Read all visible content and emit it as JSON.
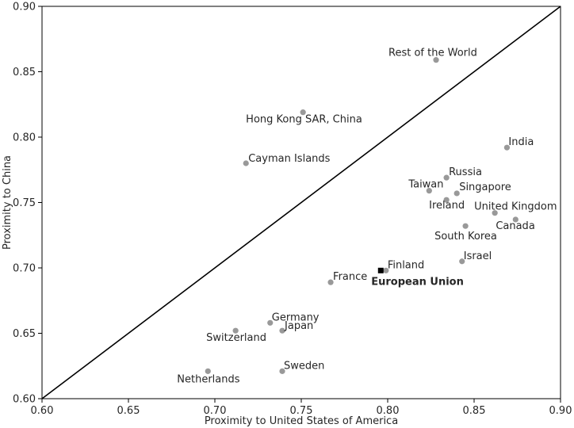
{
  "chart_data": {
    "type": "scatter",
    "xlabel": "Proximity to United States of America",
    "ylabel": "Proximity to China",
    "xlim": [
      0.6,
      0.9
    ],
    "ylim": [
      0.6,
      0.9
    ],
    "xticks": [
      "0.60",
      "0.65",
      "0.70",
      "0.75",
      "0.80",
      "0.85",
      "0.90"
    ],
    "yticks": [
      "0.60",
      "0.65",
      "0.70",
      "0.75",
      "0.80",
      "0.85",
      "0.90"
    ],
    "grid": false,
    "reference_line": {
      "type": "y=x",
      "color": "#000000"
    },
    "colors": {
      "point": "#999999",
      "highlight": "#000000",
      "axis": "#000000"
    },
    "points": [
      {
        "label": "Rest of the World",
        "x": 0.828,
        "y": 0.859
      },
      {
        "label": "Hong Kong SAR, China",
        "x": 0.751,
        "y": 0.819
      },
      {
        "label": "India",
        "x": 0.869,
        "y": 0.792
      },
      {
        "label": "Cayman Islands",
        "x": 0.718,
        "y": 0.78
      },
      {
        "label": "Russia",
        "x": 0.834,
        "y": 0.769
      },
      {
        "label": "Taiwan",
        "x": 0.824,
        "y": 0.759
      },
      {
        "label": "Singapore",
        "x": 0.84,
        "y": 0.757
      },
      {
        "label": "Ireland",
        "x": 0.834,
        "y": 0.752
      },
      {
        "label": "United Kingdom",
        "x": 0.862,
        "y": 0.742
      },
      {
        "label": "Canada",
        "x": 0.874,
        "y": 0.737
      },
      {
        "label": "South Korea",
        "x": 0.845,
        "y": 0.732
      },
      {
        "label": "Israel",
        "x": 0.843,
        "y": 0.705
      },
      {
        "label": "Finland",
        "x": 0.799,
        "y": 0.698
      },
      {
        "label": "European Union",
        "x": 0.796,
        "y": 0.698,
        "highlight": true
      },
      {
        "label": "France",
        "x": 0.767,
        "y": 0.689
      },
      {
        "label": "Germany",
        "x": 0.732,
        "y": 0.658
      },
      {
        "label": "Japan",
        "x": 0.739,
        "y": 0.652
      },
      {
        "label": "Switzerland",
        "x": 0.712,
        "y": 0.652
      },
      {
        "label": "Netherlands",
        "x": 0.696,
        "y": 0.621
      },
      {
        "label": "Sweden",
        "x": 0.739,
        "y": 0.621
      }
    ]
  }
}
